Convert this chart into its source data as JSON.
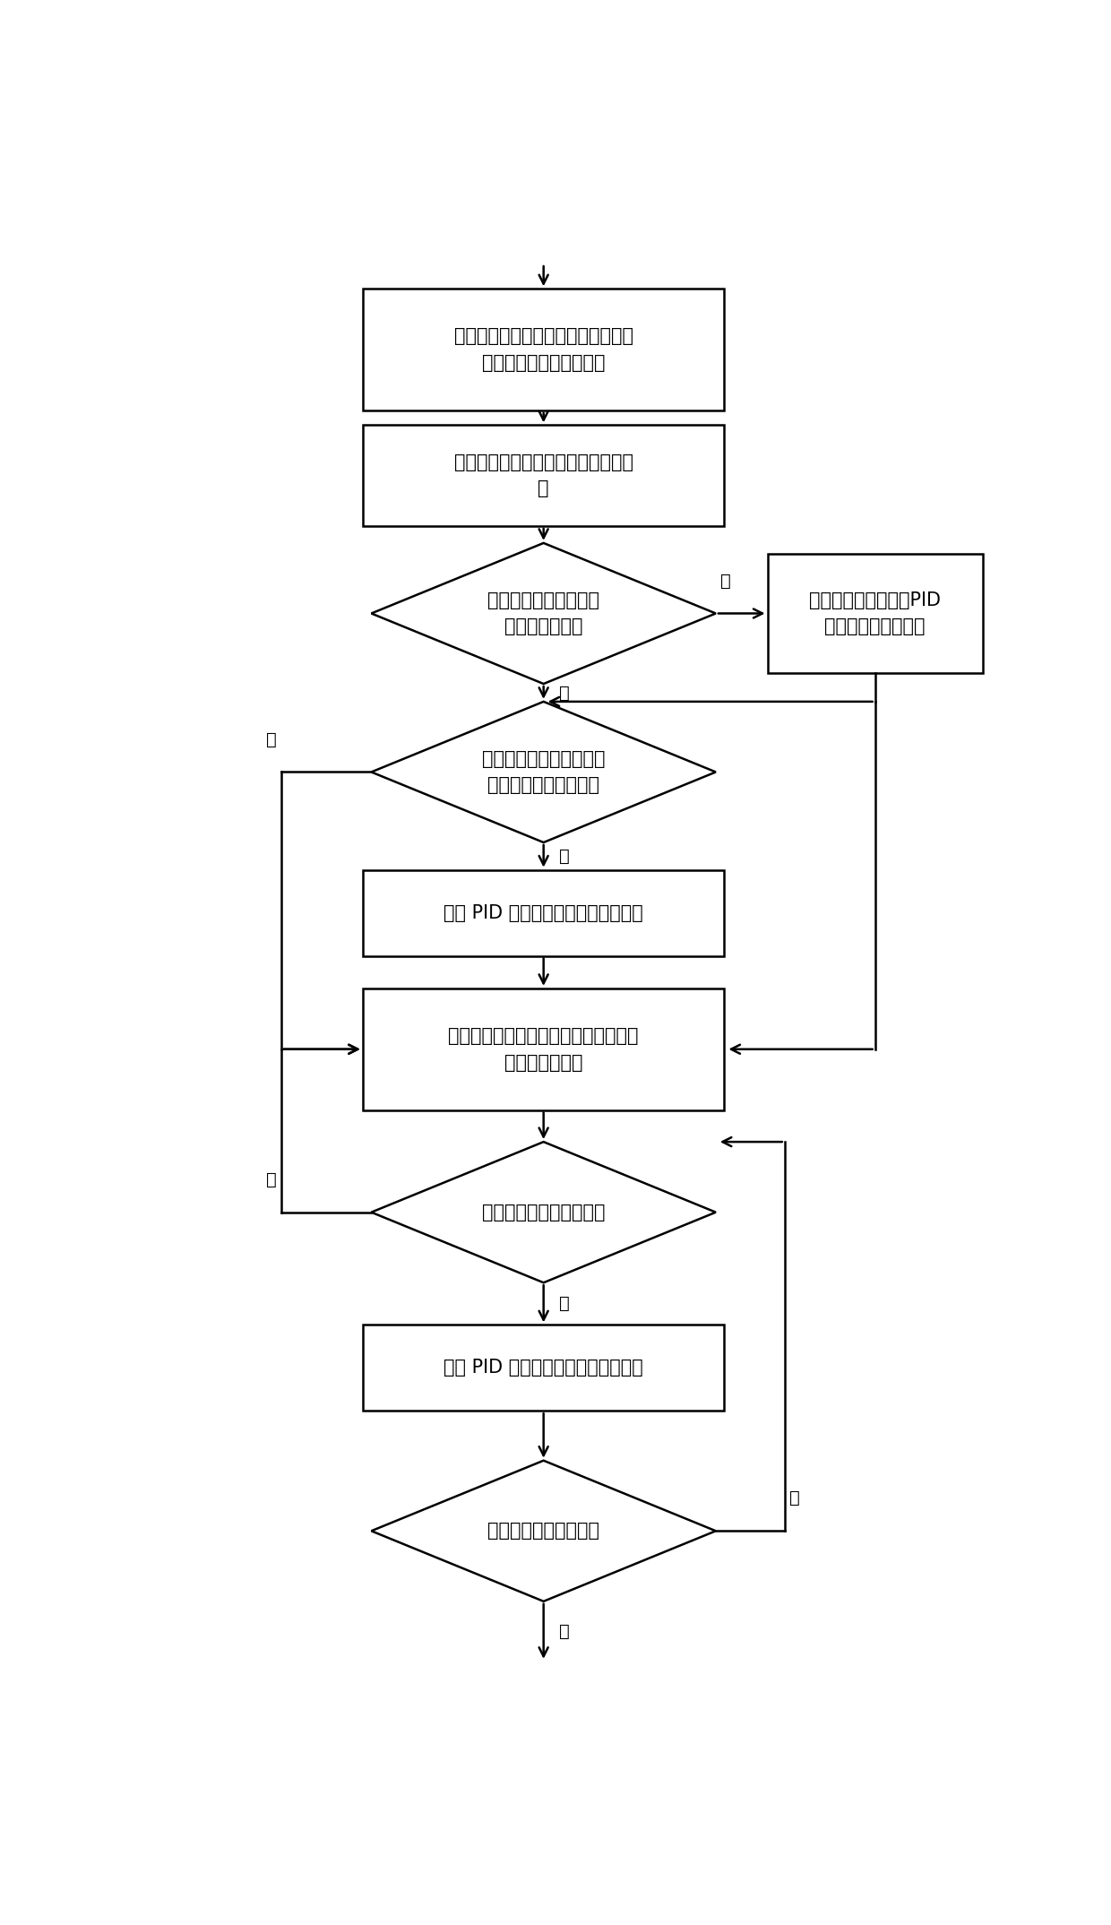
{
  "fig_width": 12.4,
  "fig_height": 21.48,
  "dpi": 100,
  "bg_color": "#ffffff",
  "box_color": "#ffffff",
  "box_edge": "#000000",
  "text_color": "#000000",
  "arrow_color": "#000000",
  "font_size": 15,
  "label_font_size": 14,
  "box1_text": "计算机输出信号，控制模块启动变频\n器，增加主风机输入电压",
  "box2_text": "检测静压箱空气压力及变频器输出信\n号",
  "dia1_text": "检测变频器输出信号是\n否达到最大值？",
  "boxR_text": "主风机满负荷运行，PID\n控制辅助风机转速。",
  "dia2_text": "检测变频第一次检测压力\n是否到达目低于标值？",
  "box3_text": "采用 PID 控制方法增加输出电压信号",
  "box4_text": "优化计算，并输出优化后的转速输出信\n号至执行部分。",
  "dia3_text": "测压力是否低于目标值？",
  "box5_text": "采用 PID 控制方法增加输出电压信号",
  "dia4_text": "是否控制下一级压力？",
  "label_yes": "是",
  "label_no": "否"
}
